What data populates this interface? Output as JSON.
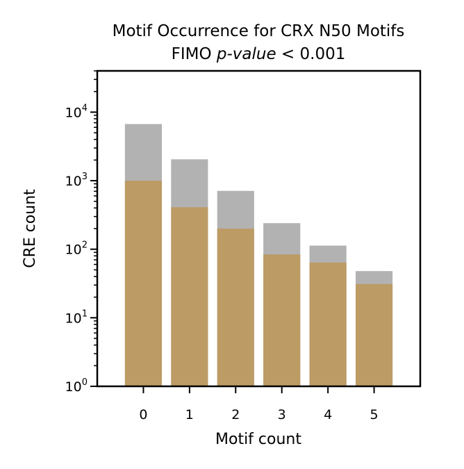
{
  "chart_data": {
    "type": "bar",
    "title_line1": "Motif Occurrence for CRX N50 Motifs",
    "title_line2_prefix": "FIMO ",
    "title_line2_italic": "p-value",
    "title_line2_suffix": " < 0.001",
    "xlabel": "Motif count",
    "ylabel": "CRE count",
    "yscale": "log",
    "ylim": [
      1,
      40000
    ],
    "xlim": [
      -1,
      6
    ],
    "categories": [
      "0",
      "1",
      "2",
      "3",
      "4",
      "5"
    ],
    "x_tick_labels": [
      "0",
      "1",
      "2",
      "3",
      "4",
      "5"
    ],
    "y_tick_labels": [
      {
        "base": "10",
        "exp": "0",
        "value": 1
      },
      {
        "base": "10",
        "exp": "1",
        "value": 10
      },
      {
        "base": "10",
        "exp": "2",
        "value": 100
      },
      {
        "base": "10",
        "exp": "3",
        "value": 1000
      },
      {
        "base": "10",
        "exp": "4",
        "value": 10000
      }
    ],
    "series": [
      {
        "color": "#b2b2b2",
        "values": [
          6700,
          2050,
          710,
          240,
          113,
          48
        ]
      },
      {
        "color": "#bc9b65",
        "values": [
          1000,
          410,
          200,
          84,
          64,
          31
        ]
      }
    ],
    "grid": false,
    "legend": "none"
  }
}
